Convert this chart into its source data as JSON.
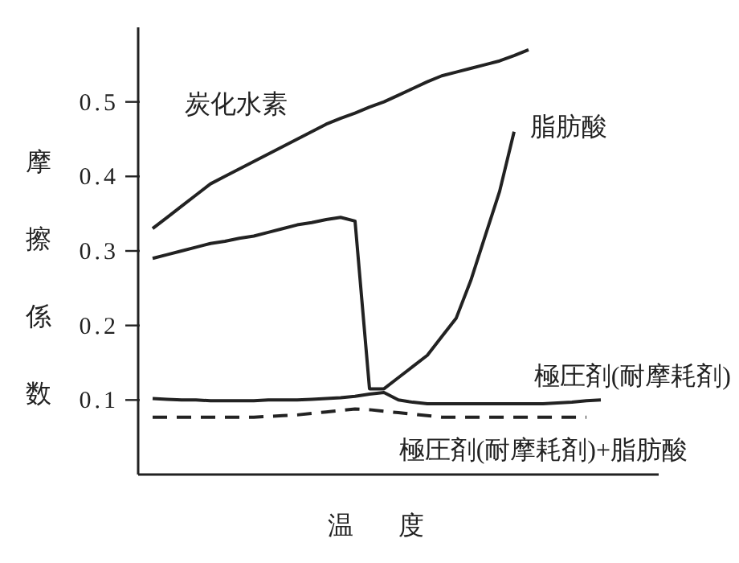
{
  "chart_data": {
    "type": "line",
    "xlabel": "温度",
    "ylabel": "摩擦係数",
    "categories": [
      null,
      null,
      null,
      null,
      null,
      null,
      null,
      null,
      null,
      null,
      null,
      null,
      null,
      null,
      null,
      null,
      null,
      null,
      null,
      null,
      null,
      null,
      null,
      null,
      null,
      null,
      null,
      null,
      null,
      null,
      null,
      null,
      null,
      null,
      null,
      null,
      null
    ],
    "series": [
      {
        "name": "炭化水素",
        "color": "#222222",
        "line_style": "solid",
        "values": [
          null,
          0.33,
          0.345,
          0.36,
          0.375,
          0.39,
          0.4,
          0.41,
          0.42,
          0.43,
          0.44,
          0.45,
          0.46,
          0.47,
          0.478,
          0.485,
          0.493,
          0.5,
          0.509,
          0.518,
          0.527,
          0.535,
          0.54,
          0.545,
          0.55,
          0.555,
          0.562,
          0.57,
          null,
          null,
          null,
          null,
          null,
          null,
          null,
          null,
          null
        ]
      },
      {
        "name": "脂肪酸",
        "color": "#222222",
        "line_style": "solid",
        "values": [
          null,
          0.29,
          0.295,
          0.3,
          0.305,
          0.31,
          0.313,
          0.317,
          0.32,
          0.325,
          0.33,
          0.335,
          0.338,
          0.342,
          0.345,
          0.34,
          0.115,
          0.115,
          0.13,
          0.145,
          0.16,
          0.185,
          0.21,
          0.26,
          0.32,
          0.38,
          0.46,
          null,
          null,
          null,
          null,
          null,
          null,
          null,
          null,
          null,
          null
        ]
      },
      {
        "name": "極圧剤(耐摩耗剤)",
        "color": "#222222",
        "line_style": "solid",
        "values": [
          null,
          0.102,
          0.101,
          0.1,
          0.1,
          0.099,
          0.099,
          0.099,
          0.099,
          0.1,
          0.1,
          0.1,
          0.101,
          0.102,
          0.103,
          0.105,
          0.108,
          0.11,
          0.1,
          0.097,
          0.095,
          0.095,
          0.095,
          0.095,
          0.095,
          0.095,
          0.095,
          0.095,
          0.095,
          0.096,
          0.097,
          0.099,
          0.1,
          null,
          null,
          null,
          null
        ]
      },
      {
        "name": "極圧剤(耐摩耗剤)+脂肪酸",
        "color": "#222222",
        "line_style": "dashed",
        "values": [
          null,
          0.077,
          0.077,
          0.077,
          0.077,
          0.077,
          0.077,
          0.077,
          0.077,
          0.078,
          0.079,
          0.08,
          0.082,
          0.084,
          0.086,
          0.088,
          0.087,
          0.085,
          0.083,
          0.081,
          0.079,
          0.077,
          0.077,
          0.077,
          0.077,
          0.077,
          0.077,
          0.077,
          0.077,
          0.077,
          0.077,
          0.077,
          null,
          null,
          null,
          null,
          null
        ]
      }
    ],
    "ylim": [
      0,
      0.6
    ],
    "yticks": [
      0.1,
      0.2,
      0.3,
      0.4,
      0.5
    ],
    "grid": false,
    "legend": false,
    "marker": "none"
  }
}
